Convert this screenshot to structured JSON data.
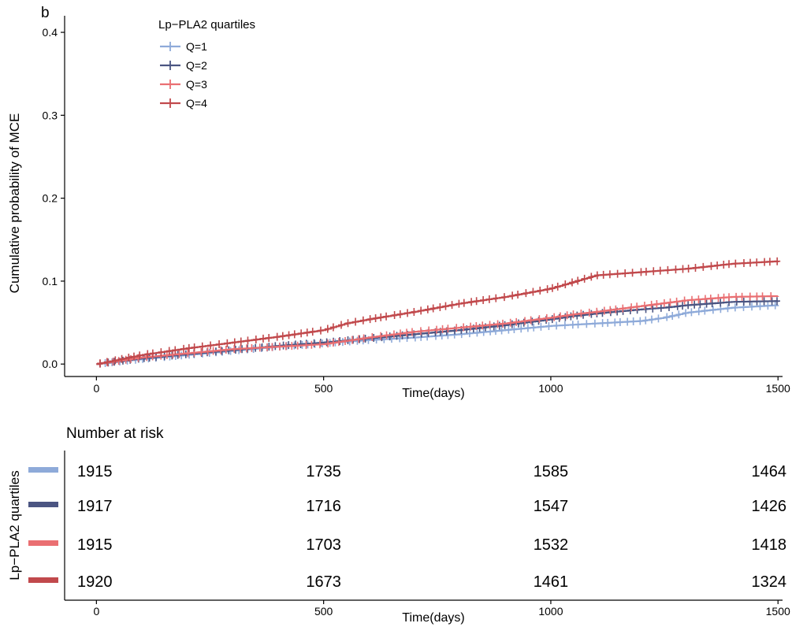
{
  "panel_label": "b",
  "chart_data": [
    {
      "type": "line",
      "xlabel": "Time(days)",
      "ylabel": "Cumulative probability of MCE",
      "xlim": [
        -70,
        1510
      ],
      "ylim": [
        -0.015,
        0.42
      ],
      "xticks": [
        0,
        500,
        1000,
        1500
      ],
      "yticks": [
        0.0,
        0.1,
        0.2,
        0.3,
        0.4
      ],
      "ytick_labels": [
        "0.0",
        "0.1",
        "0.2",
        "0.3",
        "0.4"
      ],
      "legend": {
        "title": "Lp−PLA2 quartiles",
        "position": "top-left",
        "entries": [
          "Q=1",
          "Q=2",
          "Q=3",
          "Q=4"
        ]
      },
      "grid": false,
      "censor_marks": "+",
      "series": [
        {
          "name": "Q=1",
          "color": "#8eaad9",
          "x": [
            0,
            100,
            200,
            300,
            400,
            500,
            600,
            700,
            800,
            900,
            1000,
            1100,
            1200,
            1250,
            1300,
            1400,
            1500
          ],
          "y": [
            0.0,
            0.006,
            0.011,
            0.016,
            0.021,
            0.025,
            0.029,
            0.032,
            0.036,
            0.041,
            0.046,
            0.049,
            0.052,
            0.056,
            0.062,
            0.068,
            0.071
          ]
        },
        {
          "name": "Q=2",
          "color": "#4b5582",
          "x": [
            0,
            100,
            200,
            300,
            400,
            500,
            600,
            700,
            800,
            900,
            1000,
            1050,
            1100,
            1200,
            1250,
            1300,
            1400,
            1500
          ],
          "y": [
            0.0,
            0.007,
            0.012,
            0.017,
            0.022,
            0.026,
            0.031,
            0.036,
            0.041,
            0.047,
            0.054,
            0.058,
            0.061,
            0.066,
            0.068,
            0.071,
            0.075,
            0.076
          ]
        },
        {
          "name": "Q=3",
          "color": "#ea6f72",
          "x": [
            0,
            100,
            200,
            300,
            400,
            500,
            600,
            700,
            800,
            900,
            1000,
            1050,
            1100,
            1200,
            1300,
            1400,
            1500
          ],
          "y": [
            0.0,
            0.008,
            0.013,
            0.018,
            0.021,
            0.024,
            0.032,
            0.039,
            0.044,
            0.049,
            0.056,
            0.06,
            0.063,
            0.07,
            0.077,
            0.081,
            0.082
          ]
        },
        {
          "name": "Q=4",
          "color": "#c1494c",
          "x": [
            0,
            100,
            200,
            300,
            400,
            500,
            550,
            600,
            700,
            800,
            900,
            1000,
            1050,
            1100,
            1150,
            1200,
            1300,
            1400,
            1500
          ],
          "y": [
            0.0,
            0.011,
            0.019,
            0.026,
            0.033,
            0.041,
            0.049,
            0.054,
            0.063,
            0.073,
            0.081,
            0.091,
            0.099,
            0.107,
            0.109,
            0.111,
            0.115,
            0.121,
            0.124
          ]
        }
      ]
    },
    {
      "type": "table",
      "title": "Number at risk",
      "ylabel": "Lp−PLA2 quartiles",
      "xlabel": "Time(days)",
      "xticks": [
        0,
        500,
        1000,
        1500
      ],
      "rows": [
        {
          "name": "Q=1",
          "color": "#8eaad9",
          "values": [
            "1915",
            "1735",
            "1585",
            "1464"
          ]
        },
        {
          "name": "Q=2",
          "color": "#4b5582",
          "values": [
            "1917",
            "1716",
            "1547",
            "1426"
          ]
        },
        {
          "name": "Q=3",
          "color": "#ea6f72",
          "values": [
            "1915",
            "1703",
            "1532",
            "1418"
          ]
        },
        {
          "name": "Q=4",
          "color": "#c1494c",
          "values": [
            "1920",
            "1673",
            "1461",
            "1324"
          ]
        }
      ]
    }
  ]
}
